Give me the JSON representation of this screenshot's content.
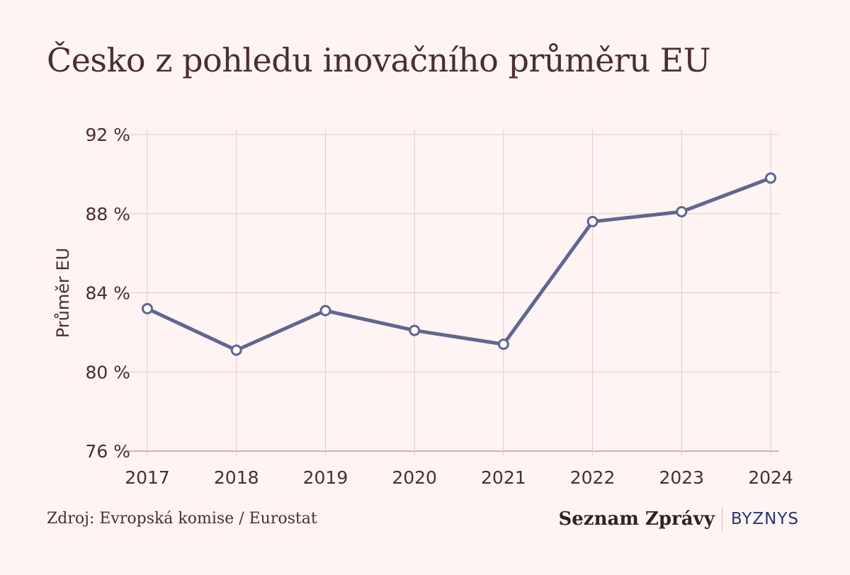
{
  "title": "Česko z pohledu inovačního průměru EU",
  "source": "Zdroj: Evropská komise / Eurostat",
  "brand": {
    "name": "Seznam Zprávy",
    "section": "BYZNYS"
  },
  "colors": {
    "background": "#fdf4f3",
    "line": "#5f6690",
    "grid": "#ecc9c9",
    "axis": "#c99a9a",
    "text": "#4a2f2d"
  },
  "chart_data": {
    "type": "line",
    "title": "Česko z pohledu inovačního průměru EU",
    "xlabel": "",
    "ylabel": "Průměr EU",
    "categories": [
      "2017",
      "2018",
      "2019",
      "2020",
      "2021",
      "2022",
      "2023",
      "2024"
    ],
    "series": [
      {
        "values": [
          83.2,
          81.1,
          83.1,
          82.1,
          81.4,
          87.6,
          88.1,
          89.8
        ]
      }
    ],
    "ylim": [
      76,
      92
    ],
    "yticks": [
      76,
      80,
      84,
      88,
      92
    ],
    "ytick_labels": [
      "76 %",
      "80 %",
      "84 %",
      "88 %",
      "92 %"
    ],
    "grid": true,
    "legend": "none"
  }
}
